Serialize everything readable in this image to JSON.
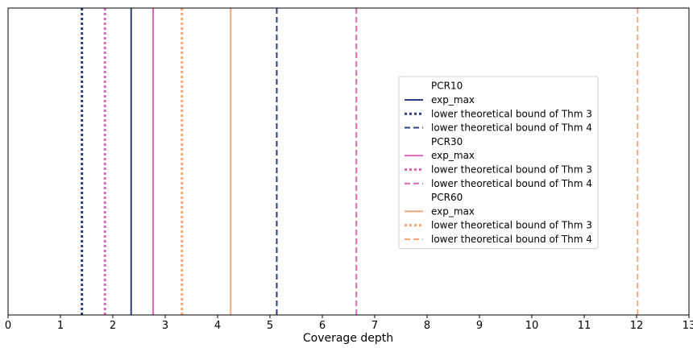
{
  "chart_data": {
    "type": "line",
    "xlabel": "Coverage depth",
    "ylabel": "",
    "title": "",
    "xlim": [
      0,
      13
    ],
    "x_ticks": [
      "0",
      "1",
      "2",
      "3",
      "4",
      "5",
      "6",
      "7",
      "8",
      "9",
      "10",
      "11",
      "12",
      "13"
    ],
    "grid": false,
    "legend_position": "center-right",
    "colors": {
      "PCR10": "#2b3f7f",
      "PCR30": "#dd68b8",
      "PCR60": "#f4a877"
    },
    "groups": [
      {
        "name": "PCR10",
        "series": [
          {
            "name": "exp_max",
            "x": 2.35,
            "style": "solid"
          },
          {
            "name": "lower theoretical bound of Thm 3",
            "x": 1.41,
            "style": "dotted"
          },
          {
            "name": "lower theoretical bound of Thm 4",
            "x": 5.13,
            "style": "dashed"
          }
        ]
      },
      {
        "name": "PCR30",
        "series": [
          {
            "name": "exp_max",
            "x": 2.77,
            "style": "solid"
          },
          {
            "name": "lower theoretical bound of Thm 3",
            "x": 1.85,
            "style": "dotted"
          },
          {
            "name": "lower theoretical bound of Thm 4",
            "x": 6.65,
            "style": "dashed"
          }
        ]
      },
      {
        "name": "PCR60",
        "series": [
          {
            "name": "exp_max",
            "x": 4.25,
            "style": "solid"
          },
          {
            "name": "lower theoretical bound of Thm 3",
            "x": 3.32,
            "style": "dotted"
          },
          {
            "name": "lower theoretical bound of Thm 4",
            "x": 12.02,
            "style": "dashed"
          }
        ]
      }
    ]
  }
}
